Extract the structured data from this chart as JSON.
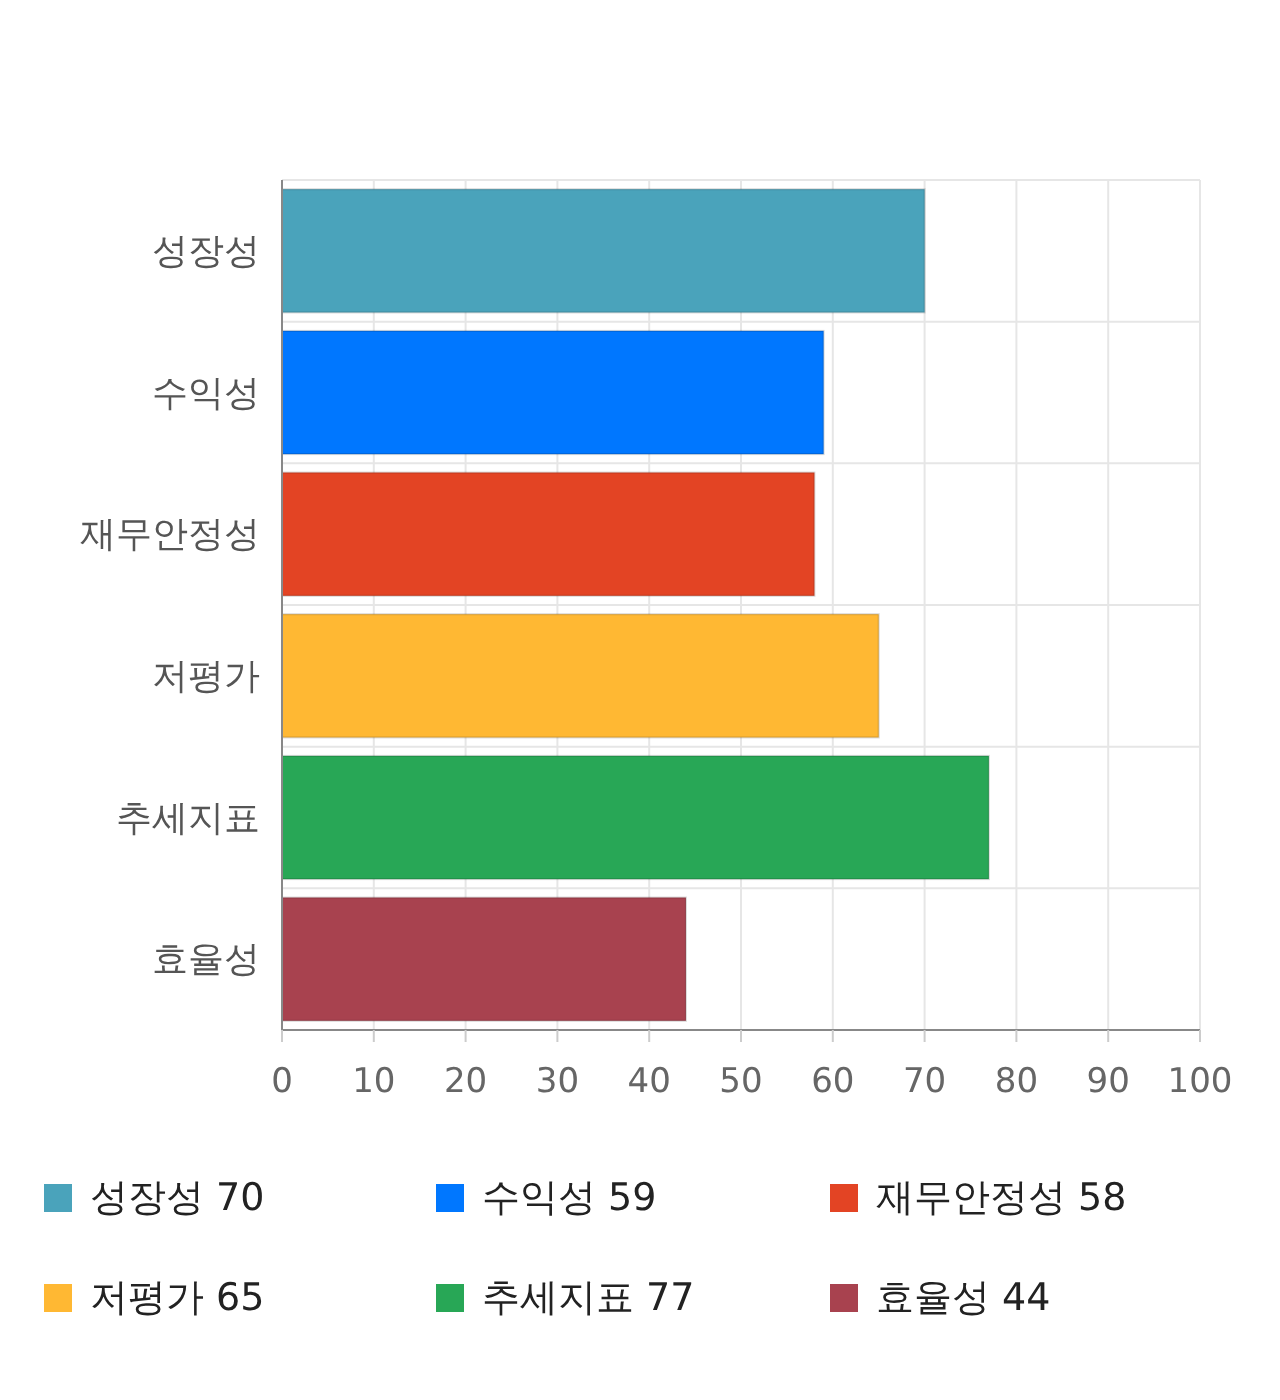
{
  "chart_data": {
    "type": "bar",
    "orientation": "horizontal",
    "stacked": true,
    "categories": [
      "성장성",
      "수익성",
      "재무안정성",
      "저평가",
      "추세지표",
      "효율성"
    ],
    "series": [
      {
        "name": "성장성 70",
        "color": "#4aa3bb",
        "values": [
          70,
          null,
          null,
          null,
          null,
          null
        ]
      },
      {
        "name": "수익성 59",
        "color": "#0077ff",
        "values": [
          null,
          59,
          null,
          null,
          null,
          null
        ]
      },
      {
        "name": "재무안정성 58",
        "color": "#e34424",
        "values": [
          null,
          null,
          58,
          null,
          null,
          null
        ]
      },
      {
        "name": "저평가 65",
        "color": "#ffb833",
        "values": [
          null,
          null,
          null,
          65,
          null,
          null
        ]
      },
      {
        "name": "추세지표 77",
        "color": "#28a756",
        "values": [
          null,
          null,
          null,
          null,
          77,
          null
        ]
      },
      {
        "name": "효율성 44",
        "color": "#a8424f",
        "values": [
          null,
          null,
          null,
          null,
          null,
          44
        ]
      }
    ],
    "xlim": [
      0,
      100
    ],
    "xticks": [
      0,
      10,
      20,
      30,
      40,
      50,
      60,
      70,
      80,
      90,
      100
    ],
    "grid": true,
    "legend": "bottom"
  }
}
